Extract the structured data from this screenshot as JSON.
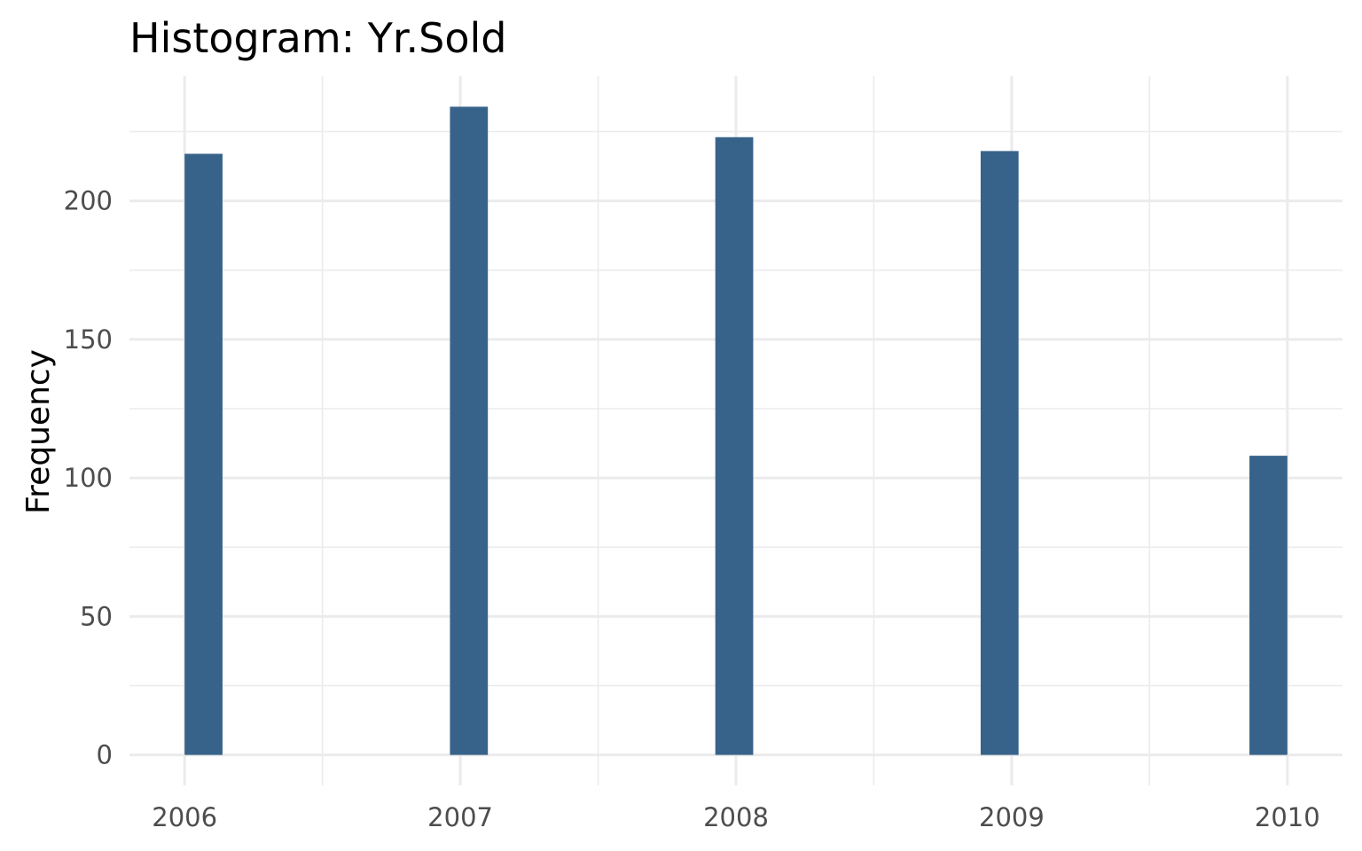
{
  "chart_data": {
    "type": "bar",
    "title": "Histogram:  Yr.Sold",
    "xlabel": "",
    "ylabel": "Frequency",
    "x_ticks": [
      2006,
      2007,
      2008,
      2009,
      2010
    ],
    "y_ticks": [
      0,
      50,
      100,
      150,
      200
    ],
    "xlim": [
      2005.8,
      2010.2
    ],
    "ylim": [
      -11,
      245
    ],
    "grid": true,
    "legend": "none",
    "bar_color": "#37638a",
    "bars": [
      {
        "x_start": 2006.0,
        "x_end": 2006.1375,
        "value": 217
      },
      {
        "x_start": 2006.9625,
        "x_end": 2007.1,
        "value": 234
      },
      {
        "x_start": 2007.925,
        "x_end": 2008.0625,
        "value": 223
      },
      {
        "x_start": 2008.8875,
        "x_end": 2009.025,
        "value": 218
      },
      {
        "x_start": 2009.8625,
        "x_end": 2010.0,
        "value": 108
      }
    ]
  }
}
